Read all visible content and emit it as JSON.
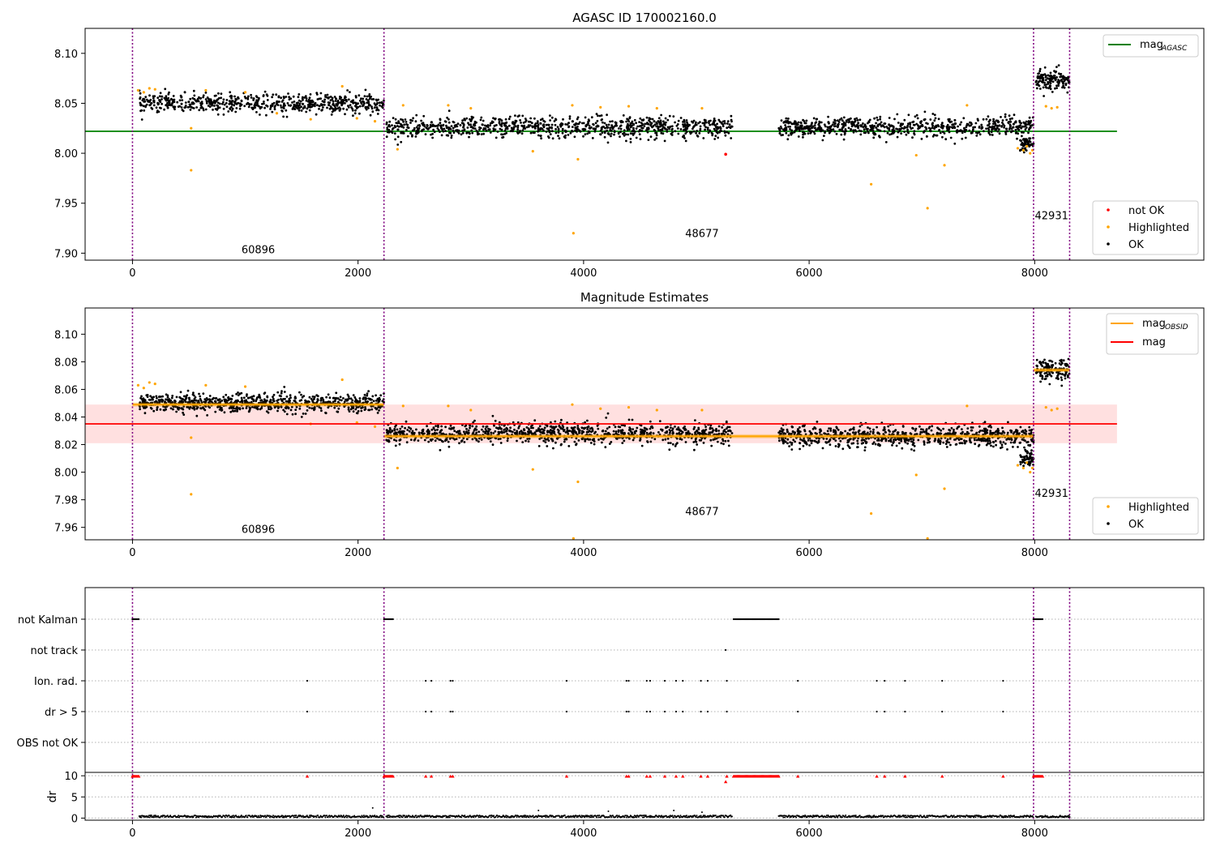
{
  "colors": {
    "ok": "#000000",
    "highlighted": "#ffa500",
    "not_ok": "#ff0000",
    "mag_agasc": "#008000",
    "mag_mean": "#ff0000",
    "obsid_line": "#800080",
    "mag_band": "#ffcccc"
  },
  "chart_data": [
    {
      "type": "scatter",
      "title": "AGASC ID 170002160.0",
      "xlim": [
        -420,
        9500
      ],
      "ylim": [
        7.893,
        8.125
      ],
      "xticks": [
        0,
        2000,
        4000,
        6000,
        8000
      ],
      "yticks": [
        7.9,
        7.95,
        8.0,
        8.05,
        8.1
      ],
      "ytick_labels": [
        "7.90",
        "7.95",
        "8.00",
        "8.05",
        "8.10"
      ],
      "obsid_boundaries": [
        0,
        2230,
        7990,
        8310
      ],
      "obsid_labels": [
        {
          "text": "60896",
          "x": 1115,
          "y": 7.9
        },
        {
          "text": "48677",
          "x": 5050,
          "y": 7.916
        },
        {
          "text": "42931",
          "x": 8150,
          "y": 7.934
        }
      ],
      "mag_agasc": {
        "value": 8.022,
        "x": [
          -420,
          8730
        ]
      },
      "segments": [
        {
          "x": [
            60,
            2230
          ],
          "y_center": 8.05,
          "y_spread": 0.0085,
          "y_slope": 0.0,
          "n": 650
        },
        {
          "x": [
            2250,
            5320
          ],
          "y_center": 8.026,
          "y_spread": 0.0095,
          "y_slope": 0.0,
          "n": 900
        },
        {
          "x": [
            5730,
            7990
          ],
          "y_center": 8.026,
          "y_spread": 0.009,
          "y_slope": 0.0,
          "n": 700
        },
        {
          "x": [
            7870,
            7990
          ],
          "y_center": 8.01,
          "y_spread": 0.007,
          "y_slope": 0.0,
          "n": 60
        },
        {
          "x": [
            8010,
            8310
          ],
          "y_center": 8.074,
          "y_spread": 0.009,
          "y_slope": 0.0,
          "n": 140
        }
      ],
      "highlighted_points": [
        [
          50,
          8.063
        ],
        [
          100,
          8.061
        ],
        [
          150,
          8.065
        ],
        [
          200,
          8.064
        ],
        [
          520,
          7.983
        ],
        [
          520,
          8.025
        ],
        [
          650,
          8.063
        ],
        [
          1000,
          8.061
        ],
        [
          1280,
          8.04
        ],
        [
          1580,
          8.034
        ],
        [
          1860,
          8.067
        ],
        [
          1990,
          8.035
        ],
        [
          2150,
          8.032
        ],
        [
          2350,
          8.004
        ],
        [
          2400,
          8.048
        ],
        [
          2800,
          8.048
        ],
        [
          3000,
          8.045
        ],
        [
          3550,
          8.002
        ],
        [
          3900,
          8.048
        ],
        [
          3910,
          7.92
        ],
        [
          3950,
          7.994
        ],
        [
          4150,
          8.046
        ],
        [
          4400,
          8.047
        ],
        [
          4650,
          8.045
        ],
        [
          5050,
          8.045
        ],
        [
          6550,
          7.969
        ],
        [
          6950,
          7.998
        ],
        [
          7050,
          7.945
        ],
        [
          7200,
          7.988
        ],
        [
          7400,
          8.048
        ],
        [
          7850,
          8.005
        ],
        [
          7900,
          8.003
        ],
        [
          7930,
          8.007
        ],
        [
          7960,
          8.0
        ],
        [
          7980,
          8.003
        ],
        [
          8100,
          8.047
        ],
        [
          8150,
          8.045
        ],
        [
          8200,
          8.046
        ]
      ],
      "not_ok_points": [
        [
          5260,
          7.999
        ]
      ],
      "legend_upper": [
        {
          "label": "mag",
          "sub": "AGASC",
          "color_key": "mag_agasc"
        }
      ],
      "legend_lower": [
        {
          "label": "not OK",
          "color_key": "not_ok"
        },
        {
          "label": "Highlighted",
          "color_key": "highlighted"
        },
        {
          "label": "OK",
          "color_key": "ok"
        }
      ]
    },
    {
      "type": "scatter",
      "title": "Magnitude Estimates",
      "xlim": [
        -420,
        9500
      ],
      "ylim": [
        7.951,
        8.119
      ],
      "xticks": [
        0,
        2000,
        4000,
        6000,
        8000
      ],
      "yticks": [
        7.96,
        7.98,
        8.0,
        8.02,
        8.04,
        8.06,
        8.08,
        8.1
      ],
      "ytick_labels": [
        "7.96",
        "7.98",
        "8.00",
        "8.02",
        "8.04",
        "8.06",
        "8.08",
        "8.10"
      ],
      "obsid_boundaries": [
        0,
        2230,
        7990,
        8310
      ],
      "obsid_labels": [
        {
          "text": "60896",
          "x": 1115,
          "y": 7.956
        },
        {
          "text": "48677",
          "x": 5050,
          "y": 7.969
        },
        {
          "text": "42931",
          "x": 8150,
          "y": 7.982
        }
      ],
      "mag_mean": {
        "value": 8.035,
        "band": [
          8.021,
          8.049
        ],
        "x": [
          -420,
          8730
        ]
      },
      "mag_obsid": [
        {
          "x": [
            0,
            2230
          ],
          "value": 8.049
        },
        {
          "x": [
            2230,
            7990
          ],
          "value": 8.026
        },
        {
          "x": [
            7990,
            8310
          ],
          "value": 8.074
        }
      ],
      "segments": [
        {
          "x": [
            60,
            2230
          ],
          "y_center": 8.05,
          "y_spread": 0.006,
          "y_slope": 0.0,
          "n": 800
        },
        {
          "x": [
            2250,
            5320
          ],
          "y_center": 8.028,
          "y_spread": 0.007,
          "y_slope": 0.0,
          "n": 1000
        },
        {
          "x": [
            5730,
            7990
          ],
          "y_center": 8.026,
          "y_spread": 0.0068,
          "y_slope": 0.0,
          "n": 800
        },
        {
          "x": [
            7870,
            7990
          ],
          "y_center": 8.01,
          "y_spread": 0.005,
          "y_slope": 0.0,
          "n": 60
        },
        {
          "x": [
            8010,
            8310
          ],
          "y_center": 8.074,
          "y_spread": 0.007,
          "y_slope": 0.0,
          "n": 140
        }
      ],
      "highlighted_points": [
        [
          50,
          8.063
        ],
        [
          100,
          8.061
        ],
        [
          150,
          8.065
        ],
        [
          200,
          8.064
        ],
        [
          520,
          7.984
        ],
        [
          520,
          8.025
        ],
        [
          650,
          8.063
        ],
        [
          1000,
          8.062
        ],
        [
          1580,
          8.035
        ],
        [
          1860,
          8.067
        ],
        [
          1990,
          8.036
        ],
        [
          2150,
          8.033
        ],
        [
          2350,
          8.003
        ],
        [
          2400,
          8.048
        ],
        [
          2800,
          8.048
        ],
        [
          3000,
          8.045
        ],
        [
          3550,
          8.002
        ],
        [
          3900,
          8.049
        ],
        [
          3910,
          7.952
        ],
        [
          3950,
          7.993
        ],
        [
          4150,
          8.046
        ],
        [
          4400,
          8.047
        ],
        [
          4650,
          8.045
        ],
        [
          5050,
          8.045
        ],
        [
          6550,
          7.97
        ],
        [
          6950,
          7.998
        ],
        [
          7050,
          7.952
        ],
        [
          7200,
          7.988
        ],
        [
          7400,
          8.048
        ],
        [
          7850,
          8.005
        ],
        [
          7900,
          8.003
        ],
        [
          7930,
          8.007
        ],
        [
          7960,
          8.0
        ],
        [
          7980,
          8.003
        ],
        [
          8100,
          8.047
        ],
        [
          8150,
          8.045
        ],
        [
          8200,
          8.046
        ]
      ],
      "legend_upper": [
        {
          "label": "mag",
          "sub": "OBSID",
          "color_key": "highlighted"
        },
        {
          "label": "mag",
          "sub": "",
          "color_key": "mag_mean"
        }
      ],
      "legend_lower": [
        {
          "label": "Highlighted",
          "color_key": "highlighted"
        },
        {
          "label": "OK",
          "color_key": "ok"
        }
      ]
    },
    {
      "type": "scatter",
      "title": "",
      "xlim": [
        -420,
        9500
      ],
      "xticks": [
        0,
        2000,
        4000,
        6000,
        8000
      ],
      "obsid_boundaries": [
        0,
        2230,
        7990,
        8310
      ],
      "flag_rows": [
        "not Kalman",
        "not track",
        "Ion. rad.",
        "dr > 5",
        "OBS not OK"
      ],
      "flags": {
        "not Kalman": {
          "ranges": [
            [
              0,
              60
            ],
            [
              2230,
              2310
            ],
            [
              5330,
              5730
            ],
            [
              7990,
              8070
            ]
          ],
          "points": []
        },
        "not track": {
          "ranges": [],
          "points": [
            5260
          ]
        },
        "Ion. rad.": {
          "ranges": [],
          "points": [
            1550,
            2600,
            2650,
            2820,
            2840,
            3850,
            4380,
            4400,
            4560,
            4590,
            4720,
            4820,
            4880,
            5040,
            5100,
            5270,
            5900,
            6600,
            6670,
            6850,
            7180,
            7720
          ]
        },
        "dr > 5": {
          "ranges": [],
          "points": [
            1550,
            2600,
            2650,
            2820,
            2840,
            3850,
            4380,
            4400,
            4560,
            4590,
            4720,
            4820,
            4880,
            5040,
            5100,
            5270,
            5900,
            6600,
            6670,
            6850,
            7180,
            7720
          ]
        },
        "OBS not OK": {
          "ranges": [],
          "points": []
        }
      },
      "dr": {
        "ylabel": "dr",
        "ylim": [
          -0.5,
          10.8
        ],
        "yticks": [
          0,
          5,
          10
        ],
        "ytick_labels": [
          "0",
          "5",
          "10"
        ],
        "baseline_segments": [
          [
            60,
            2230
          ],
          [
            2250,
            5320
          ],
          [
            5730,
            7990
          ],
          [
            8010,
            8310
          ]
        ],
        "baseline_value": 0.3,
        "outlier_points": [
          [
            2130,
            2.4
          ],
          [
            3600,
            1.8
          ],
          [
            4220,
            1.6
          ],
          [
            4800,
            1.8
          ],
          [
            5050,
            1.4
          ]
        ],
        "red_ranges": [
          [
            0,
            60
          ],
          [
            2230,
            2310
          ],
          [
            5330,
            5730
          ],
          [
            7990,
            8070
          ]
        ],
        "red_points": [
          1550,
          2600,
          2650,
          2820,
          2840,
          3850,
          4380,
          4400,
          4560,
          4590,
          4720,
          4820,
          4880,
          5040,
          5100,
          5270,
          5900,
          6600,
          6670,
          6850,
          7180,
          7720
        ],
        "red_value": 9.9,
        "red_low_points": [
          [
            5260,
            8.6
          ]
        ]
      }
    }
  ]
}
